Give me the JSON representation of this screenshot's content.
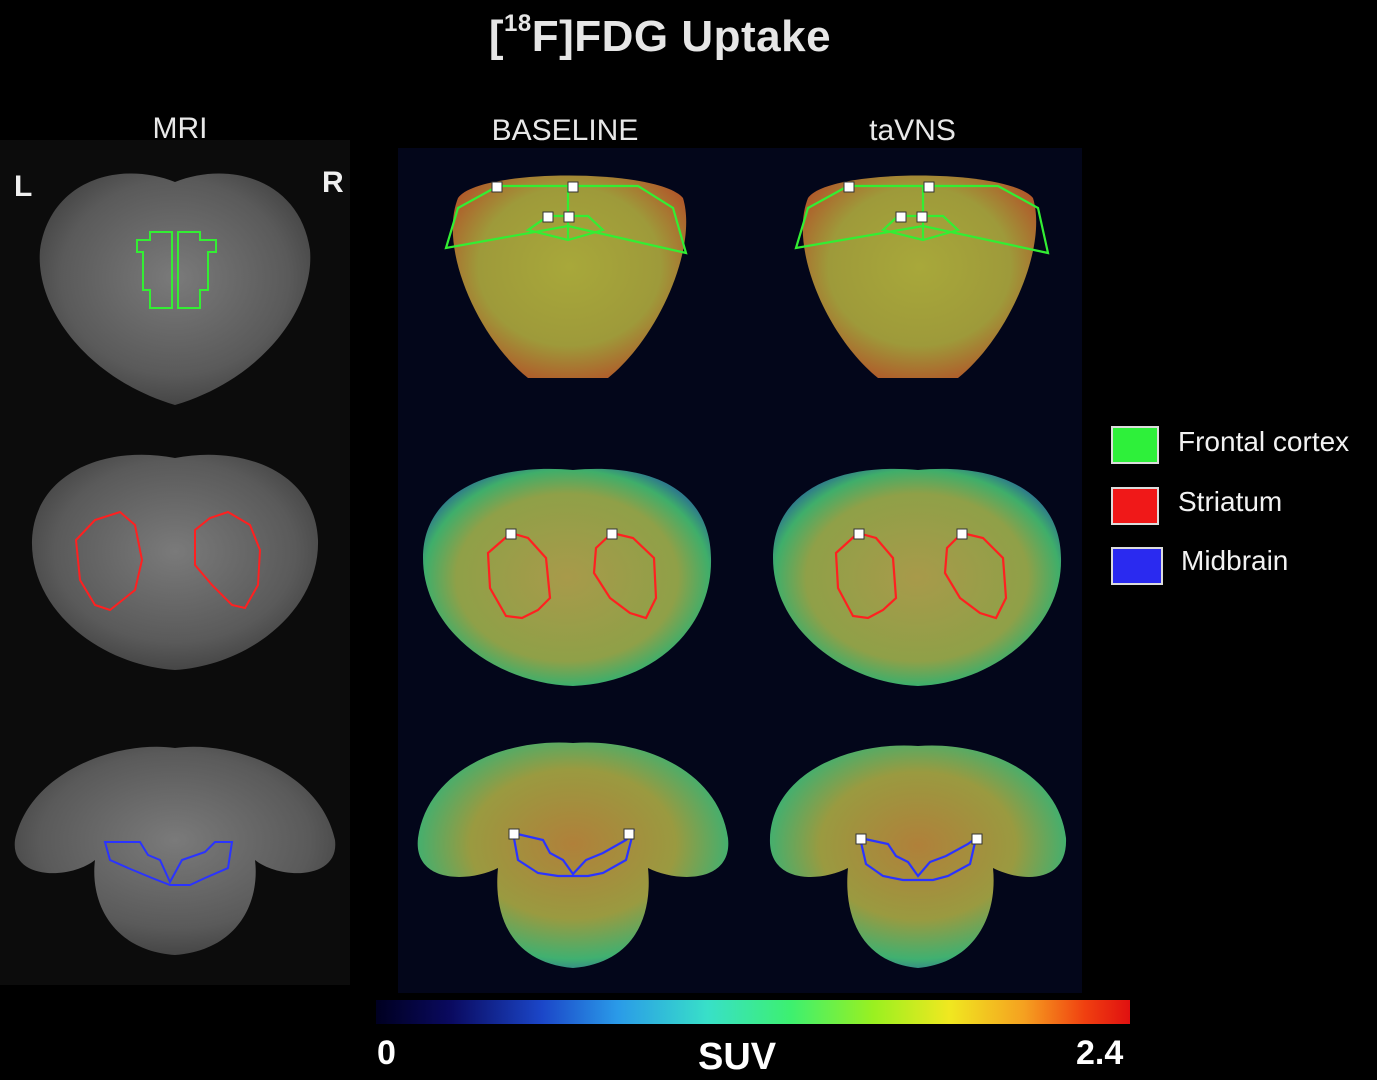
{
  "title": {
    "prefix": "[",
    "superscript": "18",
    "main": "F]FDG Uptake"
  },
  "columns": {
    "mri": "MRI",
    "baseline": "BASELINE",
    "tavns": "taVNS"
  },
  "orientation": {
    "left": "L",
    "right": "R"
  },
  "legend": [
    {
      "label": "Frontal cortex",
      "color": "#2ef03a"
    },
    {
      "label": "Striatum",
      "color": "#f01818"
    },
    {
      "label": "Midbrain",
      "color": "#2a2af0"
    }
  ],
  "colorbar": {
    "min": "0",
    "max": "2.4",
    "unit": "SUV"
  },
  "colors": {
    "frontal": "#33ee33",
    "striatum": "#ff2020",
    "midbrain": "#2a33ff"
  }
}
